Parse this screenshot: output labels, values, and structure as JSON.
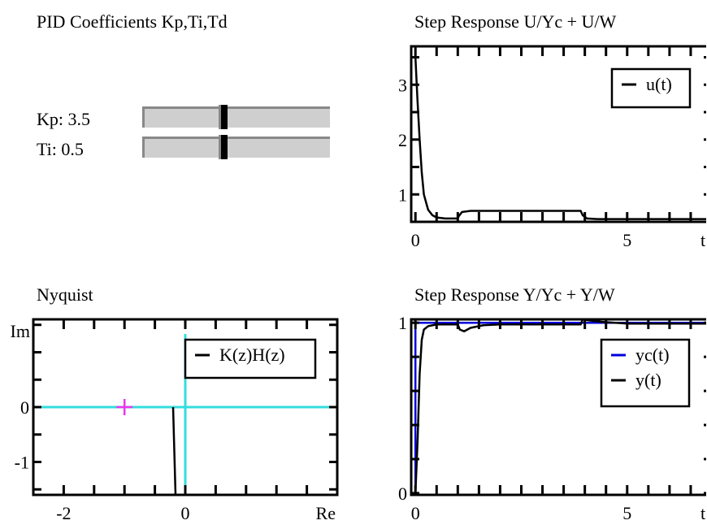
{
  "panel_title": "PID Coefficients Kp,Ti,Td",
  "sliders": [
    {
      "label": "Kp: 3.5",
      "value": 3.5,
      "fraction": 0.42
    },
    {
      "label": "Ti: 0.5",
      "value": 0.5,
      "fraction": 0.42
    }
  ],
  "chart_data": [
    {
      "type": "line",
      "title": "Step Response U/Yc + U/W",
      "xlabel": "t",
      "ylabel": "",
      "xlim": [
        -0.1,
        7.0
      ],
      "ylim": [
        0.5,
        3.7
      ],
      "xticks": [
        0,
        5
      ],
      "yticks": [
        1,
        2,
        3
      ],
      "legend_position": "top-right",
      "series": [
        {
          "name": "u(t)",
          "color": "#000000",
          "x": [
            0,
            0.05,
            0.1,
            0.15,
            0.2,
            0.3,
            0.4,
            0.5,
            0.7,
            1.0,
            1.02,
            1.1,
            1.3,
            1.6,
            2.0,
            3.0,
            3.9,
            3.95,
            4.05,
            4.3,
            5.0,
            6.0,
            7.0
          ],
          "y": [
            3.5,
            2.7,
            2.0,
            1.4,
            1.0,
            0.72,
            0.62,
            0.58,
            0.56,
            0.56,
            0.6,
            0.68,
            0.7,
            0.7,
            0.7,
            0.7,
            0.7,
            0.62,
            0.56,
            0.55,
            0.55,
            0.55,
            0.55
          ]
        }
      ]
    },
    {
      "type": "line",
      "title": "Nyquist",
      "xlabel": "Re",
      "ylabel": "Im",
      "xlim": [
        -2.5,
        2.5
      ],
      "ylim": [
        -1.6,
        1.6
      ],
      "xticks": [
        -2,
        0
      ],
      "yticks": [
        -1,
        0
      ],
      "legend_position": "top-right",
      "axis_color": "#33dddd",
      "critical_point": {
        "x": -1,
        "y": 0,
        "color": "#ee33ee"
      },
      "series": [
        {
          "name": "K(z)H(z)",
          "color": "#000000",
          "x": [
            -0.2,
            -0.18,
            -0.16
          ],
          "y": [
            0.0,
            -0.8,
            -1.6
          ]
        }
      ]
    },
    {
      "type": "line",
      "title": "Step Response Y/Yc + Y/W",
      "xlabel": "t",
      "ylabel": "",
      "xlim": [
        -0.1,
        7.0
      ],
      "ylim": [
        -0.01,
        1.02
      ],
      "xticks": [
        0,
        5
      ],
      "yticks": [
        0,
        1
      ],
      "legend_position": "center-right",
      "series": [
        {
          "name": "yc(t)",
          "color": "#0000dd",
          "x": [
            0,
            0,
            7.0
          ],
          "y": [
            0,
            1,
            1
          ]
        },
        {
          "name": "y(t)",
          "color": "#000000",
          "x": [
            0,
            0.05,
            0.1,
            0.15,
            0.2,
            0.3,
            0.5,
            0.8,
            1.0,
            1.05,
            1.15,
            1.3,
            1.6,
            2.0,
            3.0,
            3.9,
            3.95,
            4.05,
            4.4,
            5.0,
            6.0,
            7.0
          ],
          "y": [
            0,
            0.3,
            0.7,
            0.9,
            0.96,
            0.98,
            0.99,
            0.99,
            0.99,
            0.96,
            0.95,
            0.97,
            0.985,
            0.99,
            0.99,
            0.99,
            1.02,
            1.015,
            1.005,
            0.995,
            0.995,
            0.995
          ]
        }
      ]
    }
  ]
}
